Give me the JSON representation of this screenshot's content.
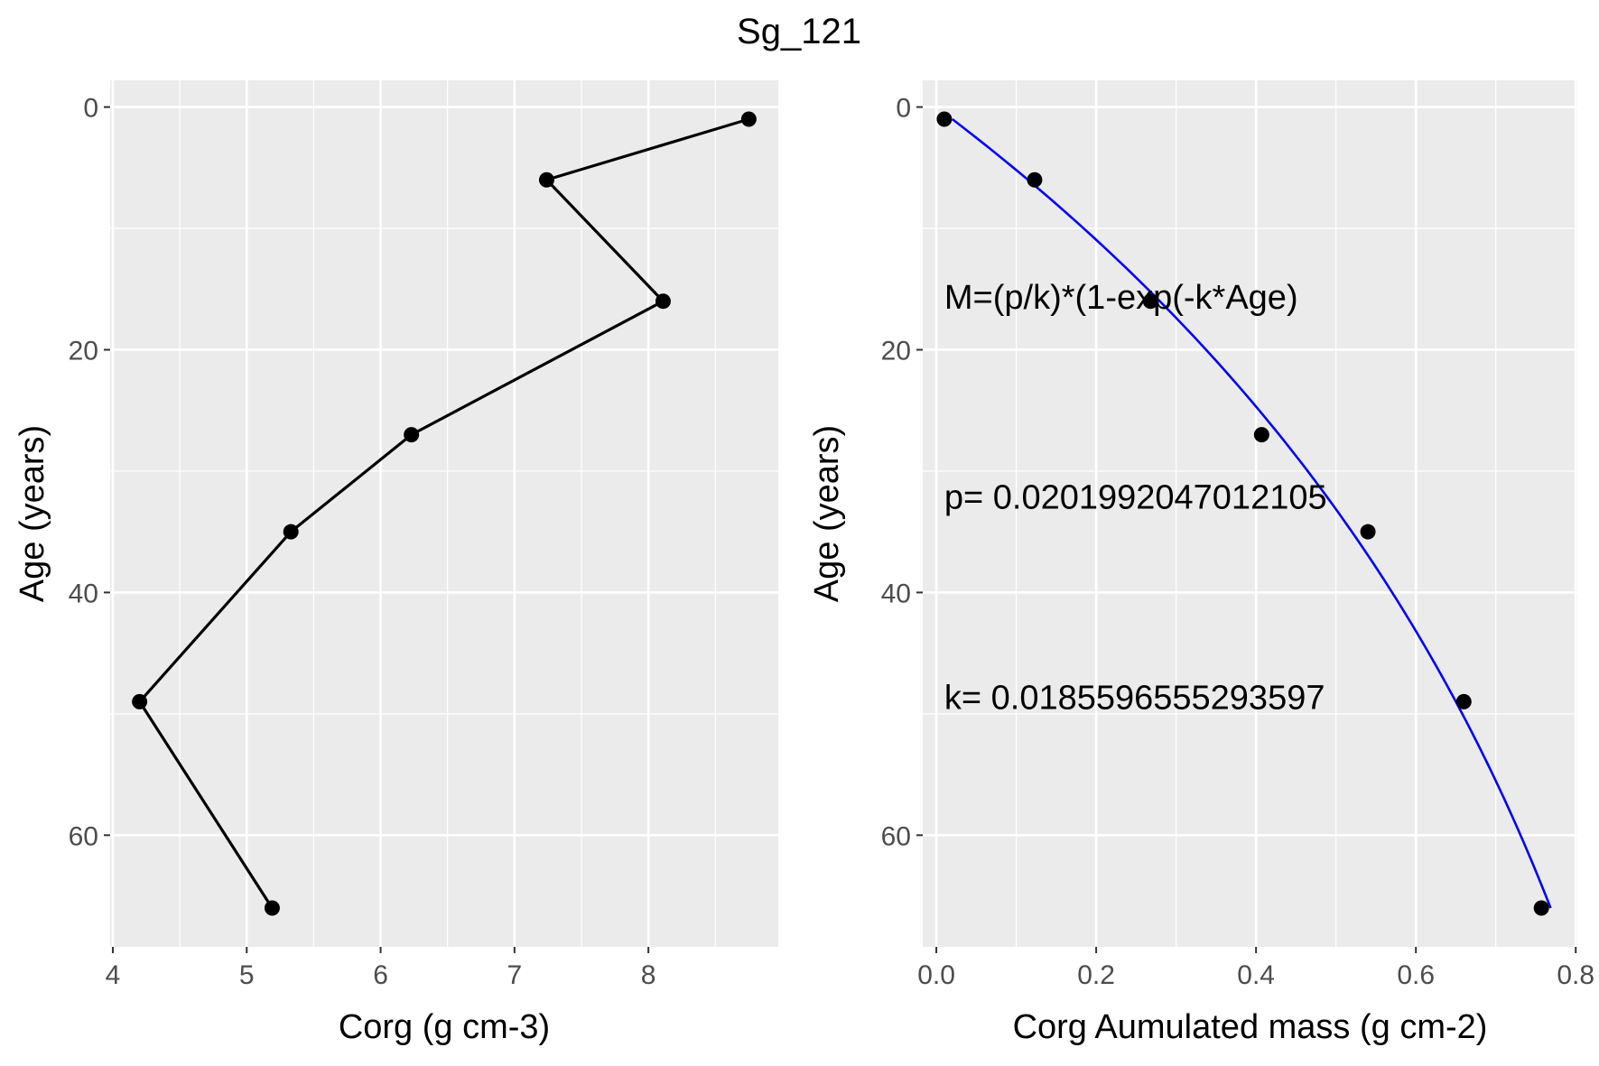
{
  "title": "Sg_121",
  "chart_data": [
    {
      "type": "line",
      "panel": "left",
      "xlabel": "Corg (g cm-3)",
      "ylabel": "Age (years)",
      "xlim": [
        3.98,
        8.97
      ],
      "ylim": [
        69.2,
        -2.2
      ],
      "y_reversed": true,
      "xticks": [
        4,
        5,
        6,
        7,
        8
      ],
      "yticks": [
        0,
        20,
        40,
        60
      ],
      "x_minor_gridlines": true,
      "y_minor_gridlines": true,
      "grid": true,
      "series": [
        {
          "color": "#000000",
          "markers": true,
          "x": [
            8.75,
            7.24,
            8.11,
            6.23,
            5.33,
            4.2,
            5.19
          ],
          "y": [
            1,
            6,
            16,
            27,
            35,
            49,
            66
          ]
        }
      ]
    },
    {
      "type": "scatter",
      "panel": "right",
      "xlabel": "Corg Aumulated mass (g cm-2)",
      "ylabel": "Age (years)",
      "xlim": [
        -0.017,
        0.802
      ],
      "ylim": [
        69.2,
        -2.2
      ],
      "y_reversed": true,
      "xticks": [
        0.0,
        0.2,
        0.4,
        0.6,
        0.8
      ],
      "xtick_labels": [
        "0.0",
        "0.2",
        "0.4",
        "0.6",
        "0.8"
      ],
      "yticks": [
        0,
        20,
        40,
        60
      ],
      "x_minor_gridlines": true,
      "y_minor_gridlines": true,
      "grid": true,
      "series": [
        {
          "color": "#000000",
          "markers": true,
          "x": [
            0.01,
            0.123,
            0.268,
            0.407,
            0.54,
            0.66,
            0.757
          ],
          "y": [
            1,
            6,
            16,
            27,
            35,
            49,
            66
          ]
        }
      ],
      "fit": {
        "color": "#0000ff",
        "model": "M=(p/k)*(1-exp(-k*Age)",
        "p": 0.0201992047012105,
        "k": 0.0185596555293597,
        "age_range": [
          1,
          66
        ]
      },
      "annotations": [
        {
          "text": "M=(p/k)*(1-exp(-k*Age)",
          "x": 0.01,
          "y": 16.6
        },
        {
          "text": "p= 0.0201992047012105",
          "x": 0.01,
          "y": 33.1
        },
        {
          "text": "k= 0.0185596555293597",
          "x": 0.01,
          "y": 49.6
        }
      ]
    }
  ],
  "colors": {
    "panel_background": "#ebebeb",
    "gridline": "#ffffff",
    "tick_label": "#4d4d4d",
    "tick_mark": "#333333",
    "fit_line": "#0000ff"
  }
}
